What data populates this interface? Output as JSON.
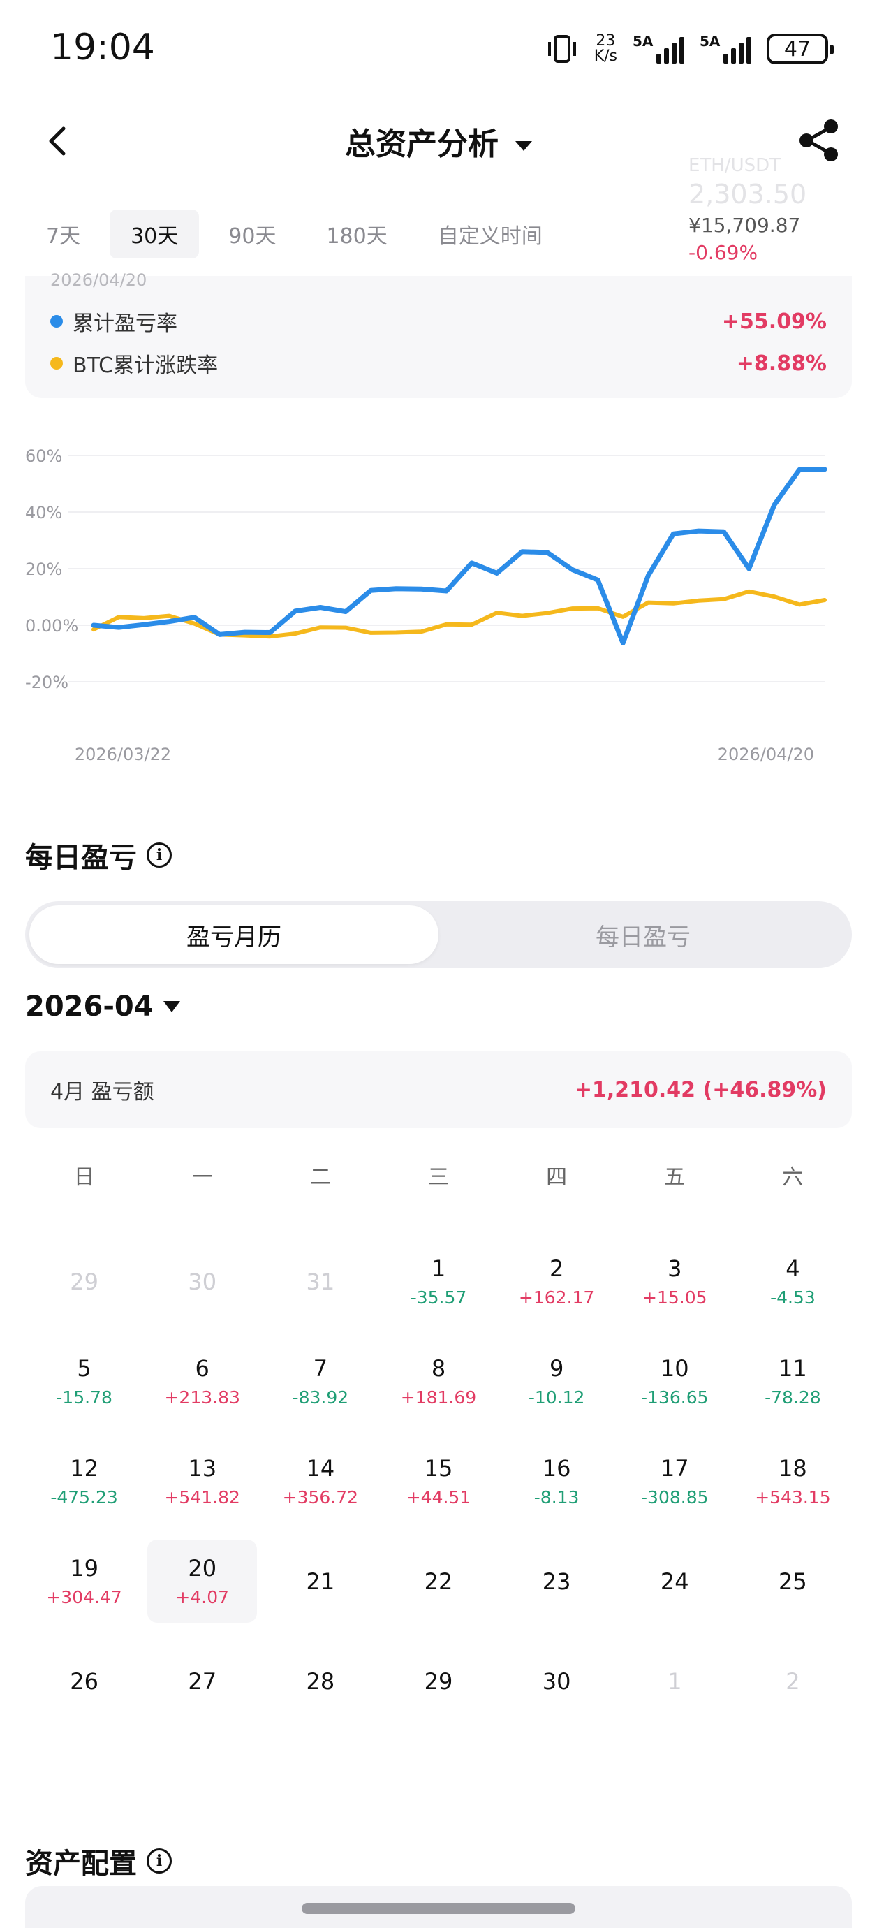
{
  "status": {
    "time": "19:04",
    "net_speed_value": "23",
    "net_speed_unit": "K/s",
    "sim1": "5A",
    "sim2": "5A",
    "battery": "47"
  },
  "nav": {
    "title": "总资产分析"
  },
  "ticker": {
    "pair": "ETH/USDT",
    "price": "2,303.50",
    "cny": "¥15,709.87",
    "change": "-0.69%"
  },
  "ranges": [
    "7天",
    "30天",
    "90天",
    "180天",
    "自定义时间"
  ],
  "legend": {
    "date": "2026/04/20",
    "items": [
      {
        "label": "累计盈亏率",
        "value": "+55.09%",
        "color": "#2b8ce8"
      },
      {
        "label": "BTC累计涨跌率",
        "value": "+8.88%",
        "color": "#f5b81c"
      }
    ]
  },
  "chart_data": {
    "type": "line",
    "y_ticks": [
      "60%",
      "40%",
      "20%",
      "0.00%",
      "-20%"
    ],
    "ylim": [
      -20,
      60
    ],
    "x_labels": [
      "2026/03/22",
      "2026/04/20"
    ],
    "series": [
      {
        "name": "累计盈亏率",
        "color": "#2b8ce8",
        "values": [
          0.0,
          -0.8,
          0.2,
          1.3,
          2.8,
          -3.3,
          -2.5,
          -2.6,
          5.0,
          6.3,
          4.8,
          12.3,
          12.9,
          12.8,
          12.1,
          22.0,
          18.4,
          26.0,
          25.7,
          19.6,
          16.0,
          -6.3,
          17.5,
          32.3,
          33.3,
          33.0,
          20.0,
          42.5,
          55.0,
          55.1
        ]
      },
      {
        "name": "BTC累计涨跌率",
        "color": "#f5b81c",
        "values": [
          -1.5,
          2.9,
          2.5,
          3.3,
          0.6,
          -3.3,
          -3.6,
          -4.0,
          -3.0,
          -0.8,
          -0.9,
          -2.7,
          -2.6,
          -2.3,
          0.3,
          0.2,
          4.4,
          3.3,
          4.3,
          5.9,
          6.0,
          3.0,
          8.0,
          7.7,
          8.7,
          9.2,
          11.9,
          10.1,
          7.3,
          8.9
        ]
      }
    ]
  },
  "daily": {
    "title": "每日盈亏",
    "info": "i",
    "segments": [
      "盈亏月历",
      "每日盈亏"
    ],
    "month": "2026-04",
    "summary_label": "4月 盈亏额",
    "summary_value": "+1,210.42 (+46.89%)",
    "weekdays": [
      "日",
      "一",
      "二",
      "三",
      "四",
      "五",
      "六"
    ],
    "days": [
      {
        "d": "29",
        "pnl": "",
        "muted": true
      },
      {
        "d": "30",
        "pnl": "",
        "muted": true
      },
      {
        "d": "31",
        "pnl": "",
        "muted": true
      },
      {
        "d": "1",
        "pnl": "-35.57"
      },
      {
        "d": "2",
        "pnl": "+162.17"
      },
      {
        "d": "3",
        "pnl": "+15.05"
      },
      {
        "d": "4",
        "pnl": "-4.53"
      },
      {
        "d": "5",
        "pnl": "-15.78"
      },
      {
        "d": "6",
        "pnl": "+213.83"
      },
      {
        "d": "7",
        "pnl": "-83.92"
      },
      {
        "d": "8",
        "pnl": "+181.69"
      },
      {
        "d": "9",
        "pnl": "-10.12"
      },
      {
        "d": "10",
        "pnl": "-136.65"
      },
      {
        "d": "11",
        "pnl": "-78.28"
      },
      {
        "d": "12",
        "pnl": "-475.23"
      },
      {
        "d": "13",
        "pnl": "+541.82"
      },
      {
        "d": "14",
        "pnl": "+356.72"
      },
      {
        "d": "15",
        "pnl": "+44.51"
      },
      {
        "d": "16",
        "pnl": "-8.13"
      },
      {
        "d": "17",
        "pnl": "-308.85"
      },
      {
        "d": "18",
        "pnl": "+543.15"
      },
      {
        "d": "19",
        "pnl": "+304.47"
      },
      {
        "d": "20",
        "pnl": "+4.07",
        "today": true
      },
      {
        "d": "21",
        "pnl": ""
      },
      {
        "d": "22",
        "pnl": ""
      },
      {
        "d": "23",
        "pnl": ""
      },
      {
        "d": "24",
        "pnl": ""
      },
      {
        "d": "25",
        "pnl": ""
      },
      {
        "d": "26",
        "pnl": ""
      },
      {
        "d": "27",
        "pnl": ""
      },
      {
        "d": "28",
        "pnl": ""
      },
      {
        "d": "29",
        "pnl": ""
      },
      {
        "d": "30",
        "pnl": ""
      },
      {
        "d": "1",
        "pnl": "",
        "muted": true
      },
      {
        "d": "2",
        "pnl": "",
        "muted": true
      }
    ]
  },
  "allocation": {
    "title": "资产配置",
    "info": "i"
  }
}
